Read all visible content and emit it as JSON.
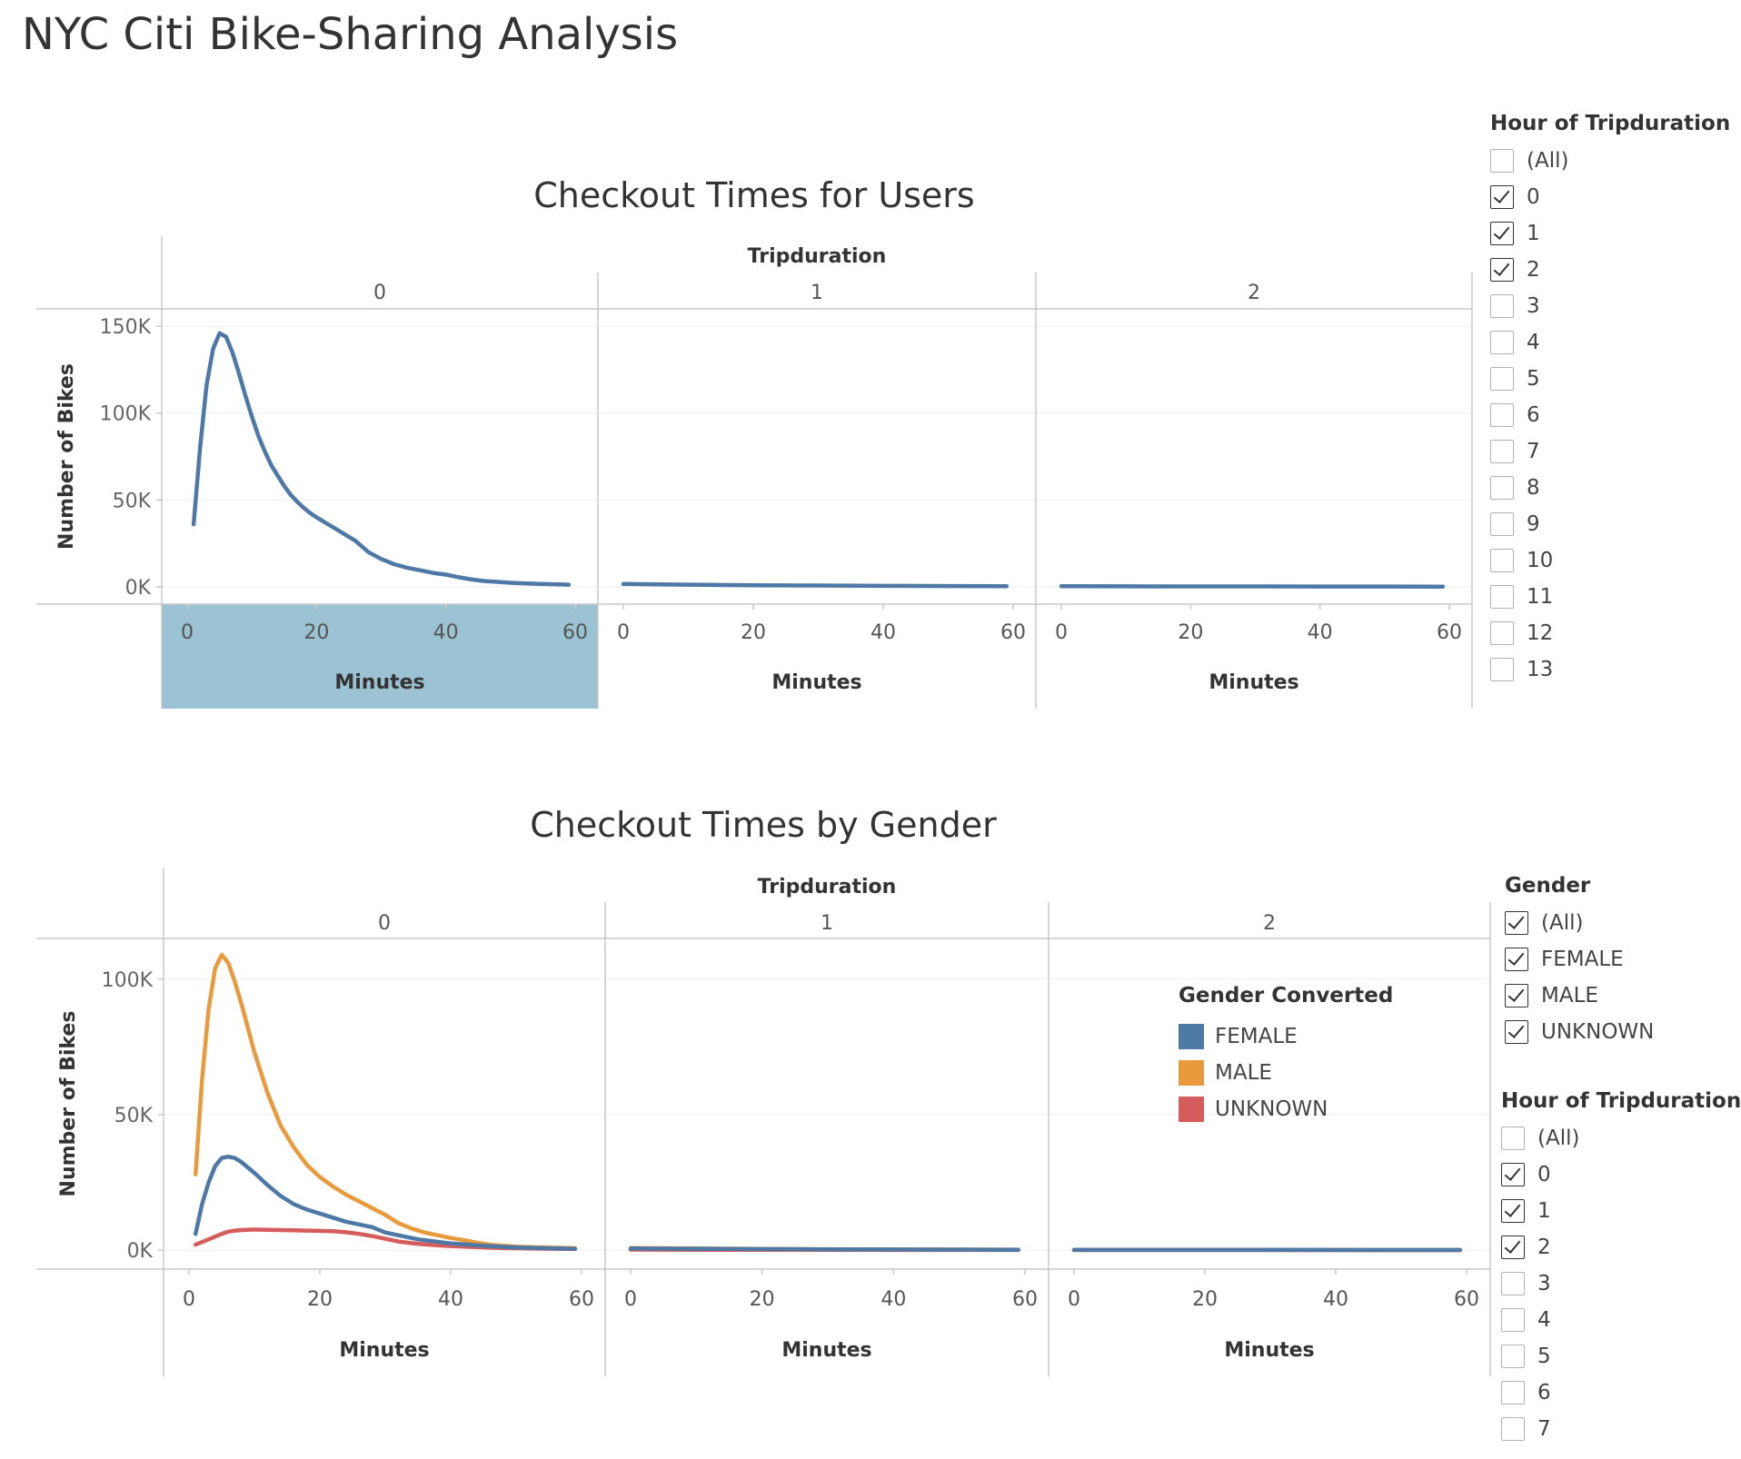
{
  "dashboard": {
    "title": "NYC Citi Bike-Sharing Analysis"
  },
  "colors": {
    "female": "#4e79a7",
    "male": "#e89a3c",
    "unknown": "#d65c5c",
    "panel_highlight": "#9bc3d3"
  },
  "chart_data": [
    {
      "id": "users",
      "type": "line",
      "title": "Checkout Times for Users",
      "column_header": "Tripduration",
      "panels": [
        "0",
        "1",
        "2"
      ],
      "highlighted_panel": "0",
      "xlabel": "Minutes",
      "ylabel": "Number of Bikes",
      "xlim": [
        0,
        60
      ],
      "xticks": [
        "0",
        "20",
        "40",
        "60"
      ],
      "ylim": [
        -10000,
        160000
      ],
      "yticks": [
        {
          "value": 150000,
          "label": "150K"
        },
        {
          "value": 100000,
          "label": "100K"
        },
        {
          "value": 50000,
          "label": "50K"
        },
        {
          "value": 0,
          "label": "0K"
        }
      ],
      "series": [
        {
          "color": "#4e79a7",
          "panels": [
            {
              "x": [
                1,
                2,
                3,
                4,
                5,
                6,
                7,
                8,
                9,
                10,
                11,
                12,
                13,
                14,
                15,
                16,
                17,
                18,
                19,
                20,
                22,
                24,
                26,
                28,
                30,
                32,
                34,
                36,
                38,
                40,
                42,
                44,
                46,
                48,
                50,
                52,
                54,
                56,
                58,
                59
              ],
              "y": [
                36000,
                80000,
                116000,
                137000,
                146000,
                144000,
                135000,
                123000,
                110000,
                98000,
                87000,
                78000,
                70000,
                64000,
                58000,
                53000,
                49000,
                45500,
                42500,
                40000,
                35500,
                31000,
                26500,
                20000,
                16000,
                13000,
                11000,
                9500,
                8000,
                7000,
                5500,
                4200,
                3300,
                2800,
                2300,
                2000,
                1700,
                1500,
                1300,
                1200
              ]
            },
            {
              "x": [
                0,
                10,
                20,
                30,
                40,
                50,
                59
              ],
              "y": [
                1600,
                1200,
                900,
                700,
                500,
                400,
                300
              ]
            },
            {
              "x": [
                0,
                10,
                20,
                30,
                40,
                50,
                59
              ],
              "y": [
                300,
                250,
                200,
                180,
                150,
                130,
                120
              ]
            }
          ]
        }
      ]
    },
    {
      "id": "gender",
      "type": "line",
      "title": "Checkout Times by Gender",
      "column_header": "Tripduration",
      "panels": [
        "0",
        "1",
        "2"
      ],
      "xlabel": "Minutes",
      "ylabel": "Number of Bikes",
      "xlim": [
        0,
        60
      ],
      "xticks": [
        "0",
        "20",
        "40",
        "60"
      ],
      "ylim": [
        -7000,
        115000
      ],
      "yticks": [
        {
          "value": 100000,
          "label": "100K"
        },
        {
          "value": 50000,
          "label": "50K"
        },
        {
          "value": 0,
          "label": "0K"
        }
      ],
      "legend": {
        "title": "Gender Converted",
        "placement": "inside"
      },
      "series": [
        {
          "name": "FEMALE",
          "color": "#4e79a7",
          "panels": [
            {
              "x": [
                1,
                2,
                3,
                4,
                5,
                6,
                7,
                8,
                10,
                12,
                14,
                16,
                18,
                20,
                22,
                24,
                26,
                28,
                30,
                35,
                40,
                45,
                50,
                55,
                59
              ],
              "y": [
                6000,
                17000,
                25000,
                31000,
                34000,
                34500,
                34000,
                32500,
                28500,
                24000,
                20000,
                17000,
                15000,
                13500,
                12000,
                10500,
                9500,
                8500,
                6500,
                4000,
                2500,
                1600,
                1000,
                700,
                500
              ]
            },
            {
              "x": [
                0,
                10,
                20,
                30,
                40,
                50,
                59
              ],
              "y": [
                600,
                500,
                400,
                300,
                250,
                200,
                150
              ]
            },
            {
              "x": [
                0,
                10,
                20,
                30,
                40,
                50,
                59
              ],
              "y": [
                150,
                120,
                100,
                90,
                80,
                70,
                60
              ]
            }
          ]
        },
        {
          "name": "MALE",
          "color": "#e89a3c",
          "panels": [
            {
              "x": [
                1,
                2,
                3,
                4,
                5,
                6,
                7,
                8,
                10,
                12,
                14,
                16,
                18,
                20,
                22,
                24,
                26,
                28,
                30,
                32,
                34,
                36,
                38,
                40,
                42,
                44,
                46,
                48,
                50,
                52,
                54,
                56,
                58,
                59
              ],
              "y": [
                28000,
                63000,
                89000,
                104000,
                109000,
                106000,
                99000,
                91000,
                73000,
                58000,
                46000,
                38000,
                31500,
                27000,
                23500,
                20500,
                18000,
                15500,
                13000,
                10000,
                8000,
                6500,
                5500,
                4500,
                3700,
                2800,
                2000,
                1600,
                1300,
                1100,
                1000,
                900,
                800,
                750
              ]
            },
            {
              "x": [
                0,
                10,
                20,
                30,
                40,
                50,
                59
              ],
              "y": [
                800,
                600,
                450,
                350,
                280,
                220,
                180
              ]
            },
            {
              "x": [
                0,
                10,
                20,
                30,
                40,
                50,
                59
              ],
              "y": [
                150,
                120,
                100,
                90,
                80,
                70,
                60
              ]
            }
          ]
        },
        {
          "name": "UNKNOWN",
          "color": "#d65c5c",
          "panels": [
            {
              "x": [
                1,
                2,
                3,
                4,
                5,
                6,
                7,
                8,
                10,
                12,
                14,
                16,
                18,
                20,
                22,
                24,
                26,
                28,
                30,
                32,
                34,
                36,
                38,
                40,
                42,
                44,
                46,
                48,
                50,
                52,
                54,
                56,
                58,
                59
              ],
              "y": [
                2000,
                3000,
                4000,
                5000,
                6000,
                6800,
                7200,
                7400,
                7600,
                7500,
                7400,
                7300,
                7200,
                7100,
                7000,
                6600,
                6000,
                5200,
                4200,
                3200,
                2600,
                2100,
                1800,
                1500,
                1300,
                1100,
                900,
                800,
                700,
                600,
                550,
                500,
                450,
                400
              ]
            },
            {
              "x": [
                0,
                10,
                20,
                30,
                40,
                50,
                59
              ],
              "y": [
                200,
                150,
                120,
                100,
                80,
                70,
                60
              ]
            },
            {
              "x": [
                0,
                10,
                20,
                30,
                40,
                50,
                59
              ],
              "y": [
                50,
                40,
                30,
                30,
                25,
                20,
                20
              ]
            }
          ]
        }
      ]
    }
  ],
  "filters": {
    "users_hour": {
      "title": "Hour of Tripduration",
      "items": [
        {
          "label": "(All)",
          "checked": false
        },
        {
          "label": "0",
          "checked": true
        },
        {
          "label": "1",
          "checked": true
        },
        {
          "label": "2",
          "checked": true
        },
        {
          "label": "3",
          "checked": false
        },
        {
          "label": "4",
          "checked": false
        },
        {
          "label": "5",
          "checked": false
        },
        {
          "label": "6",
          "checked": false
        },
        {
          "label": "7",
          "checked": false
        },
        {
          "label": "8",
          "checked": false
        },
        {
          "label": "9",
          "checked": false
        },
        {
          "label": "10",
          "checked": false
        },
        {
          "label": "11",
          "checked": false
        },
        {
          "label": "12",
          "checked": false
        },
        {
          "label": "13",
          "checked": false
        }
      ]
    },
    "gender": {
      "title": "Gender",
      "items": [
        {
          "label": "(All)",
          "checked": true
        },
        {
          "label": "FEMALE",
          "checked": true
        },
        {
          "label": "MALE",
          "checked": true
        },
        {
          "label": "UNKNOWN",
          "checked": true
        }
      ]
    },
    "gender_hour": {
      "title": "Hour of Tripduration",
      "items": [
        {
          "label": "(All)",
          "checked": false
        },
        {
          "label": "0",
          "checked": true
        },
        {
          "label": "1",
          "checked": true
        },
        {
          "label": "2",
          "checked": true
        },
        {
          "label": "3",
          "checked": false
        },
        {
          "label": "4",
          "checked": false
        },
        {
          "label": "5",
          "checked": false
        },
        {
          "label": "6",
          "checked": false
        },
        {
          "label": "7",
          "checked": false
        }
      ]
    }
  }
}
